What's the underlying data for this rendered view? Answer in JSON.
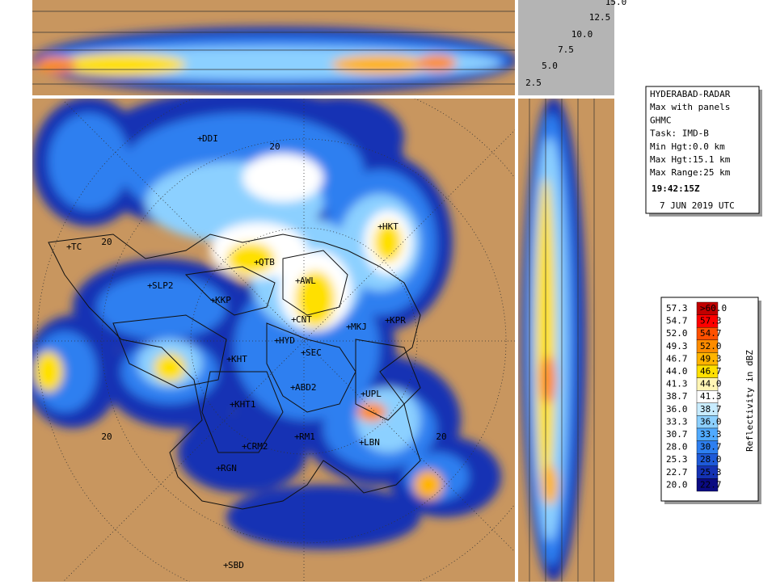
{
  "info": {
    "lines": [
      "HYDERABAD-RADAR",
      "Max with panels",
      "GHMC",
      "Task: IMD-B",
      "Min Hgt:0.0 km",
      "Max Hgt:15.1 km",
      "Max Range:25 km"
    ],
    "time": "19:42:15Z",
    "date": "7 JUN 2019 UTC"
  },
  "height_scale": [
    "15.0",
    "12.5",
    "10.0",
    "7.5",
    "5.0",
    "2.5"
  ],
  "legend": {
    "title": "Reflectivity in dBZ",
    "rows": [
      {
        "low": "57.3",
        "high": ">60.0",
        "color": "#c00000"
      },
      {
        "low": "54.7",
        "high": "57.3",
        "color": "#ff0000"
      },
      {
        "low": "52.0",
        "high": "54.7",
        "color": "#ff5000"
      },
      {
        "low": "49.3",
        "high": "52.0",
        "color": "#ff8c00"
      },
      {
        "low": "46.7",
        "high": "49.3",
        "color": "#ffb400"
      },
      {
        "low": "44.0",
        "high": "46.7",
        "color": "#ffe000"
      },
      {
        "low": "41.3",
        "high": "44.0",
        "color": "#fff5b4"
      },
      {
        "low": "38.7",
        "high": "41.3",
        "color": "#ffffff"
      },
      {
        "low": "36.0",
        "high": "38.7",
        "color": "#c8ecff"
      },
      {
        "low": "33.3",
        "high": "36.0",
        "color": "#8cd0ff"
      },
      {
        "low": "30.7",
        "high": "33.3",
        "color": "#50aaff"
      },
      {
        "low": "28.0",
        "high": "30.7",
        "color": "#2d7ff0"
      },
      {
        "low": "25.3",
        "high": "28.0",
        "color": "#1e5ad8"
      },
      {
        "low": "22.7",
        "high": "25.3",
        "color": "#1432b4"
      },
      {
        "low": "20.0",
        "high": "22.7",
        "color": "#0a0a82"
      }
    ]
  },
  "places": [
    "DDI",
    "HKT",
    "TC",
    "QTB",
    "AWL",
    "SLP2",
    "KKP",
    "CNT",
    "MKJ",
    "KPR",
    "HYD",
    "SEC",
    "KHT",
    "ABD2",
    "UPL",
    "KHT1",
    "LBN",
    "RM1",
    "CRM2",
    "RGN",
    "SBD"
  ],
  "ring_labels": [
    "20",
    "20",
    "20",
    "20"
  ]
}
